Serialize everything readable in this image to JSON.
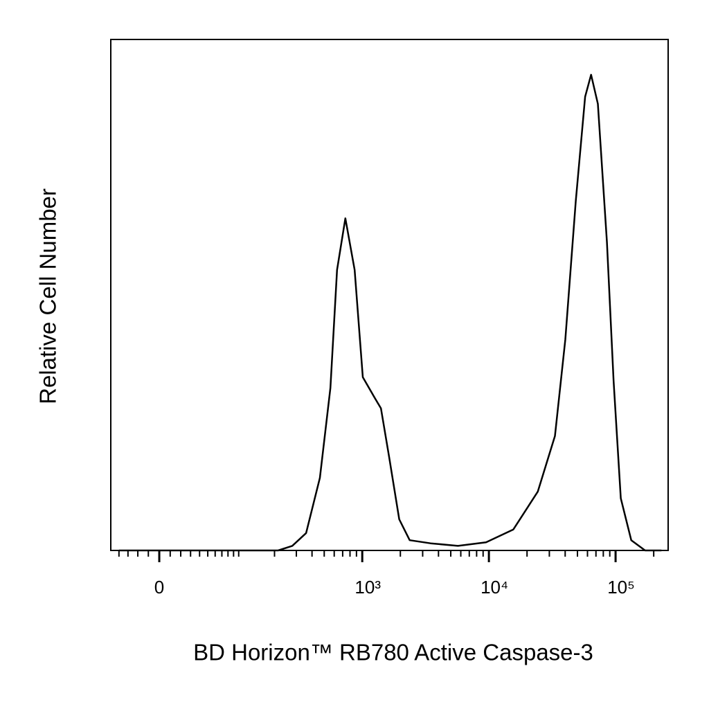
{
  "chart_data": {
    "type": "line",
    "xlabel": "BD Horizon™ RB780  Active Caspase-3",
    "ylabel": "Relative Cell Number",
    "xscale": "biexponential",
    "xlim": [
      -50,
      260000
    ],
    "ylim": [
      0,
      100
    ],
    "xticks": [
      {
        "value": 0,
        "label": "0"
      },
      {
        "value": 1000,
        "label": "10³"
      },
      {
        "value": 10000,
        "label": "10⁴"
      },
      {
        "value": 100000,
        "label": "10⁵"
      }
    ],
    "xminorticks": [
      -40,
      -30,
      -20,
      -10,
      10,
      20,
      30,
      40,
      50,
      60,
      70,
      80,
      90,
      100,
      200,
      300,
      400,
      500,
      600,
      700,
      800,
      900,
      2000,
      3000,
      4000,
      5000,
      6000,
      7000,
      8000,
      9000,
      20000,
      30000,
      40000,
      50000,
      60000,
      70000,
      80000,
      90000,
      200000
    ],
    "color": "#000000",
    "x": [
      -40,
      100,
      214,
      278,
      359,
      462,
      560,
      632,
      735,
      870,
      1010,
      1260,
      1405,
      1630,
      1960,
      2370,
      3460,
      5700,
      9500,
      15600,
      24300,
      33200,
      40100,
      48500,
      57500,
      64100,
      72500,
      85500,
      96500,
      110000,
      133000,
      171000,
      230000
    ],
    "values": [
      0,
      0,
      0,
      0.9,
      3.4,
      14.2,
      31.8,
      54.9,
      65.0,
      54.9,
      33.9,
      29.8,
      27.8,
      18.3,
      6.1,
      2.0,
      1.4,
      0.9,
      1.6,
      4.1,
      11.5,
      22.4,
      41.3,
      68.4,
      88.8,
      93.1,
      87.4,
      60.3,
      33.2,
      10.2,
      2.0,
      0,
      0
    ]
  }
}
